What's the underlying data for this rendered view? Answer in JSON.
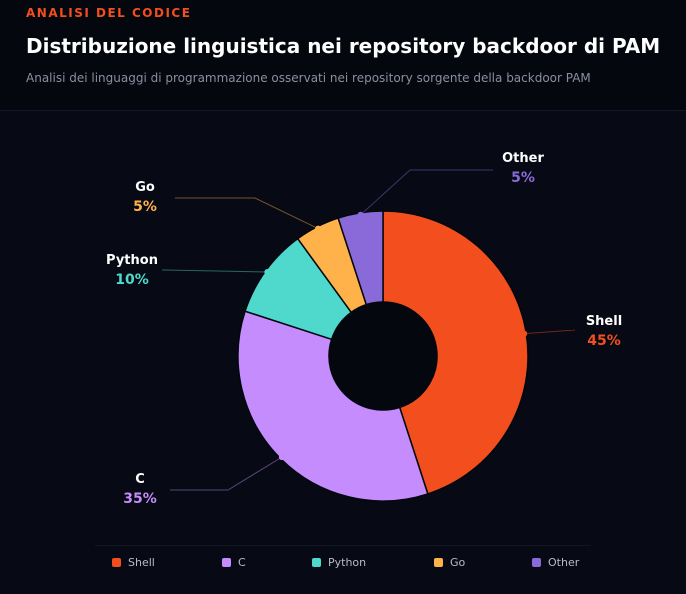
{
  "header": {
    "eyebrow": "ANALISI DEL CODICE",
    "title": "Distribuzione linguistica nei repository backdoor di PAM",
    "subtitle": "Analisi dei linguaggi di programmazione osservati nei repository sorgente della backdoor PAM"
  },
  "colors": {
    "accent": "#f24e1e",
    "background": "#05070e"
  },
  "chart_data": {
    "type": "pie",
    "donut": true,
    "unit": "%",
    "categories": [
      "Shell",
      "C",
      "Python",
      "Go",
      "Other"
    ],
    "values": [
      45,
      35,
      10,
      5,
      5
    ],
    "labels": [
      "45%",
      "35%",
      "10%",
      "5%",
      "5%"
    ],
    "colors": [
      "#f24e1e",
      "#c48cfc",
      "#4fd8cc",
      "#ffb24a",
      "#8a6ad8"
    ],
    "legend": {
      "position": "bottom",
      "items": [
        "Shell",
        "C",
        "Python",
        "Go",
        "Other"
      ]
    },
    "start": "top",
    "direction": "clockwise"
  }
}
